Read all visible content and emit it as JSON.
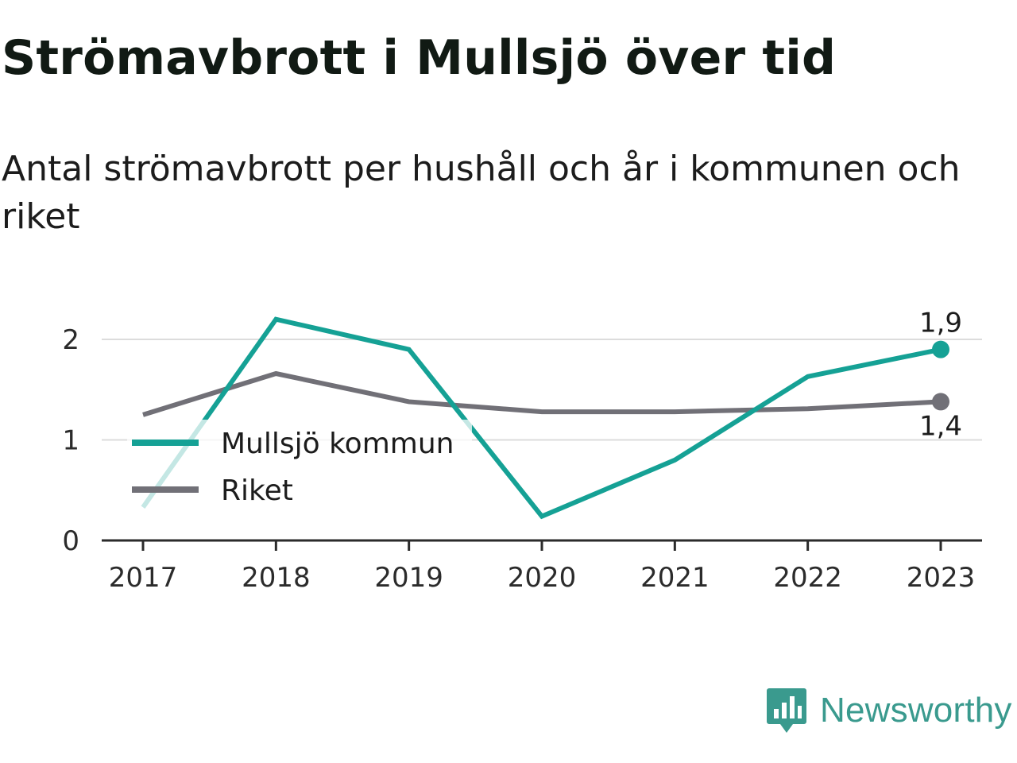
{
  "header": {
    "title": "Strömavbrott i Mullsjö över tid",
    "subtitle": "Antal strömavbrott per hushåll och år i kommunen och riket"
  },
  "brand": {
    "name": "Newsworthy",
    "icon": "newsworthy-logo-icon",
    "color": "#3a9a8e"
  },
  "chart_data": {
    "type": "line",
    "categories": [
      "2017",
      "2018",
      "2019",
      "2020",
      "2021",
      "2022",
      "2023"
    ],
    "x": [
      2017,
      2018,
      2019,
      2020,
      2021,
      2022,
      2023
    ],
    "ylim": [
      0,
      2.35
    ],
    "yticks": [
      0,
      1,
      2
    ],
    "ytick_labels": [
      "0",
      "1",
      "2"
    ],
    "grid": true,
    "legend_position": "bottom-left",
    "series": [
      {
        "name": "Mullsjö kommun",
        "color": "#15a195",
        "values": [
          0.33,
          2.2,
          1.9,
          0.24,
          0.8,
          1.63,
          1.9
        ],
        "end_label": "1,9"
      },
      {
        "name": "Riket",
        "color": "#717077",
        "values": [
          1.25,
          1.66,
          1.38,
          1.28,
          1.28,
          1.31,
          1.38
        ],
        "end_label": "1,4"
      }
    ]
  }
}
